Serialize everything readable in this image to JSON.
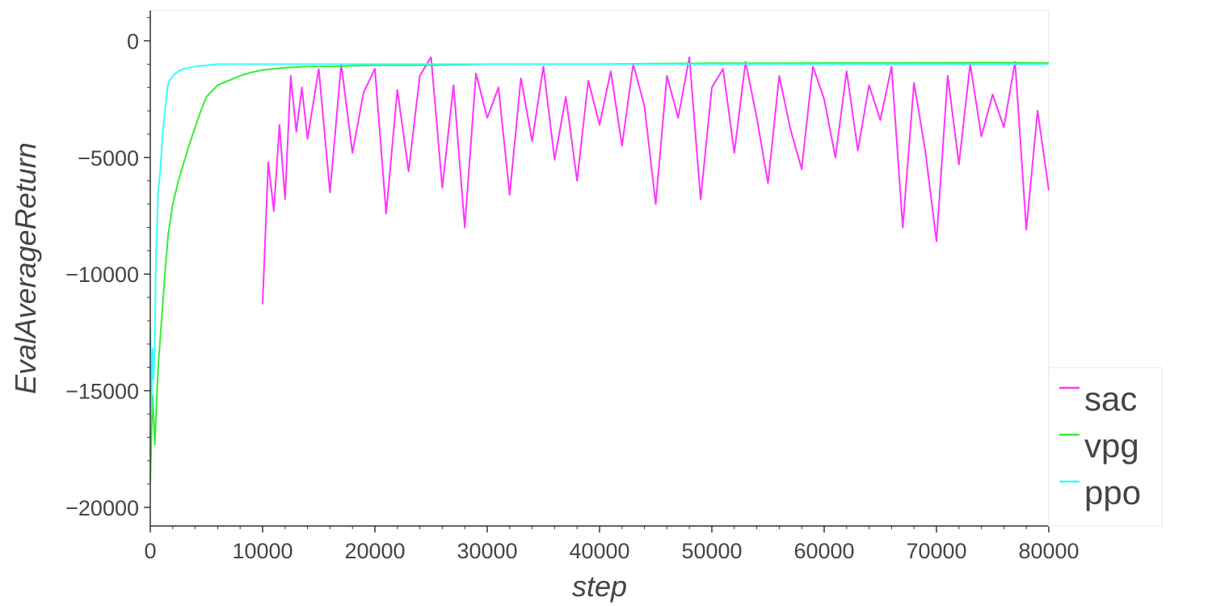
{
  "chart_data": {
    "type": "line",
    "xlabel": "step",
    "ylabel": "EvalAverageReturn",
    "xlim": [
      0,
      80000
    ],
    "ylim": [
      -20800,
      1300
    ],
    "x_ticks": [
      0,
      10000,
      20000,
      30000,
      40000,
      50000,
      60000,
      70000,
      80000
    ],
    "y_ticks": [
      0,
      -5000,
      -10000,
      -15000,
      -20000
    ],
    "x_ticklabels": [
      "0",
      "10000",
      "20000",
      "30000",
      "40000",
      "50000",
      "60000",
      "70000",
      "80000"
    ],
    "y_ticklabels": [
      "0",
      "−5000",
      "−10000",
      "−15000",
      "−20000"
    ],
    "grid": false,
    "legend_position": "bottom-right-outside",
    "series": [
      {
        "name": "sac",
        "color": "#ff33ff",
        "x": [
          10000,
          10500,
          11000,
          11500,
          12000,
          12500,
          13000,
          13500,
          14000,
          15000,
          16000,
          17000,
          18000,
          19000,
          20000,
          21000,
          22000,
          23000,
          24000,
          25000,
          26000,
          27000,
          28000,
          29000,
          30000,
          31000,
          32000,
          33000,
          34000,
          35000,
          36000,
          37000,
          38000,
          39000,
          40000,
          41000,
          42000,
          43000,
          44000,
          45000,
          46000,
          47000,
          48000,
          49000,
          50000,
          51000,
          52000,
          53000,
          54000,
          55000,
          56000,
          57000,
          58000,
          59000,
          60000,
          61000,
          62000,
          63000,
          64000,
          65000,
          66000,
          67000,
          68000,
          69000,
          70000,
          71000,
          72000,
          73000,
          74000,
          75000,
          76000,
          77000,
          78000,
          79000,
          80000
        ],
        "y": [
          -11300,
          -5200,
          -7300,
          -3600,
          -6800,
          -1500,
          -3900,
          -2000,
          -4200,
          -1200,
          -6500,
          -1000,
          -4800,
          -2200,
          -1200,
          -7400,
          -2100,
          -5600,
          -1500,
          -700,
          -6300,
          -1900,
          -8000,
          -1400,
          -3300,
          -2000,
          -6600,
          -1600,
          -4300,
          -1100,
          -5100,
          -2400,
          -6000,
          -1700,
          -3600,
          -1300,
          -4500,
          -1000,
          -2800,
          -7000,
          -1500,
          -3300,
          -700,
          -6800,
          -2000,
          -1200,
          -4800,
          -900,
          -3300,
          -6100,
          -1500,
          -3800,
          -5500,
          -1100,
          -2500,
          -5000,
          -1300,
          -4700,
          -1900,
          -3400,
          -1100,
          -8000,
          -1800,
          -4700,
          -8600,
          -1500,
          -5300,
          -1000,
          -4100,
          -2300,
          -3700,
          -900,
          -8100,
          -3000,
          -6400
        ]
      },
      {
        "name": "vpg",
        "color": "#33ee33",
        "x": [
          0,
          200,
          400,
          700,
          1000,
          1300,
          1600,
          2000,
          2500,
          3000,
          3500,
          4000,
          4500,
          5000,
          6000,
          7000,
          8000,
          9000,
          10000,
          12000,
          14000,
          16000,
          20000,
          25000,
          30000,
          35000,
          40000,
          45000,
          50000,
          55000,
          60000,
          65000,
          70000,
          75000,
          80000
        ],
        "y": [
          -18900,
          -15200,
          -17300,
          -14000,
          -12000,
          -10000,
          -8300,
          -7000,
          -6000,
          -5200,
          -4400,
          -3700,
          -3000,
          -2400,
          -1900,
          -1700,
          -1500,
          -1350,
          -1250,
          -1150,
          -1100,
          -1100,
          -1050,
          -1050,
          -1000,
          -1000,
          -1000,
          -980,
          -960,
          -960,
          -950,
          -950,
          -940,
          -930,
          -950
        ]
      },
      {
        "name": "ppo",
        "color": "#33ffff",
        "x": [
          0,
          100,
          200,
          300,
          400,
          500,
          700,
          900,
          1100,
          1300,
          1600,
          2000,
          2500,
          3000,
          4000,
          5000,
          6000,
          8000,
          10000,
          12000,
          15000,
          20000,
          25000,
          30000,
          35000,
          40000,
          45000,
          50000,
          55000,
          60000,
          65000,
          70000,
          75000,
          80000
        ],
        "y": [
          -12300,
          -15900,
          -13200,
          -14500,
          -12800,
          -9500,
          -6500,
          -5500,
          -4000,
          -3000,
          -1800,
          -1500,
          -1300,
          -1200,
          -1100,
          -1050,
          -1000,
          -1000,
          -1000,
          -1000,
          -1000,
          -1000,
          -1000,
          -1000,
          -1000,
          -1000,
          -1000,
          -1000,
          -1000,
          -1000,
          -1000,
          -1000,
          -1000,
          -1000
        ]
      }
    ]
  }
}
